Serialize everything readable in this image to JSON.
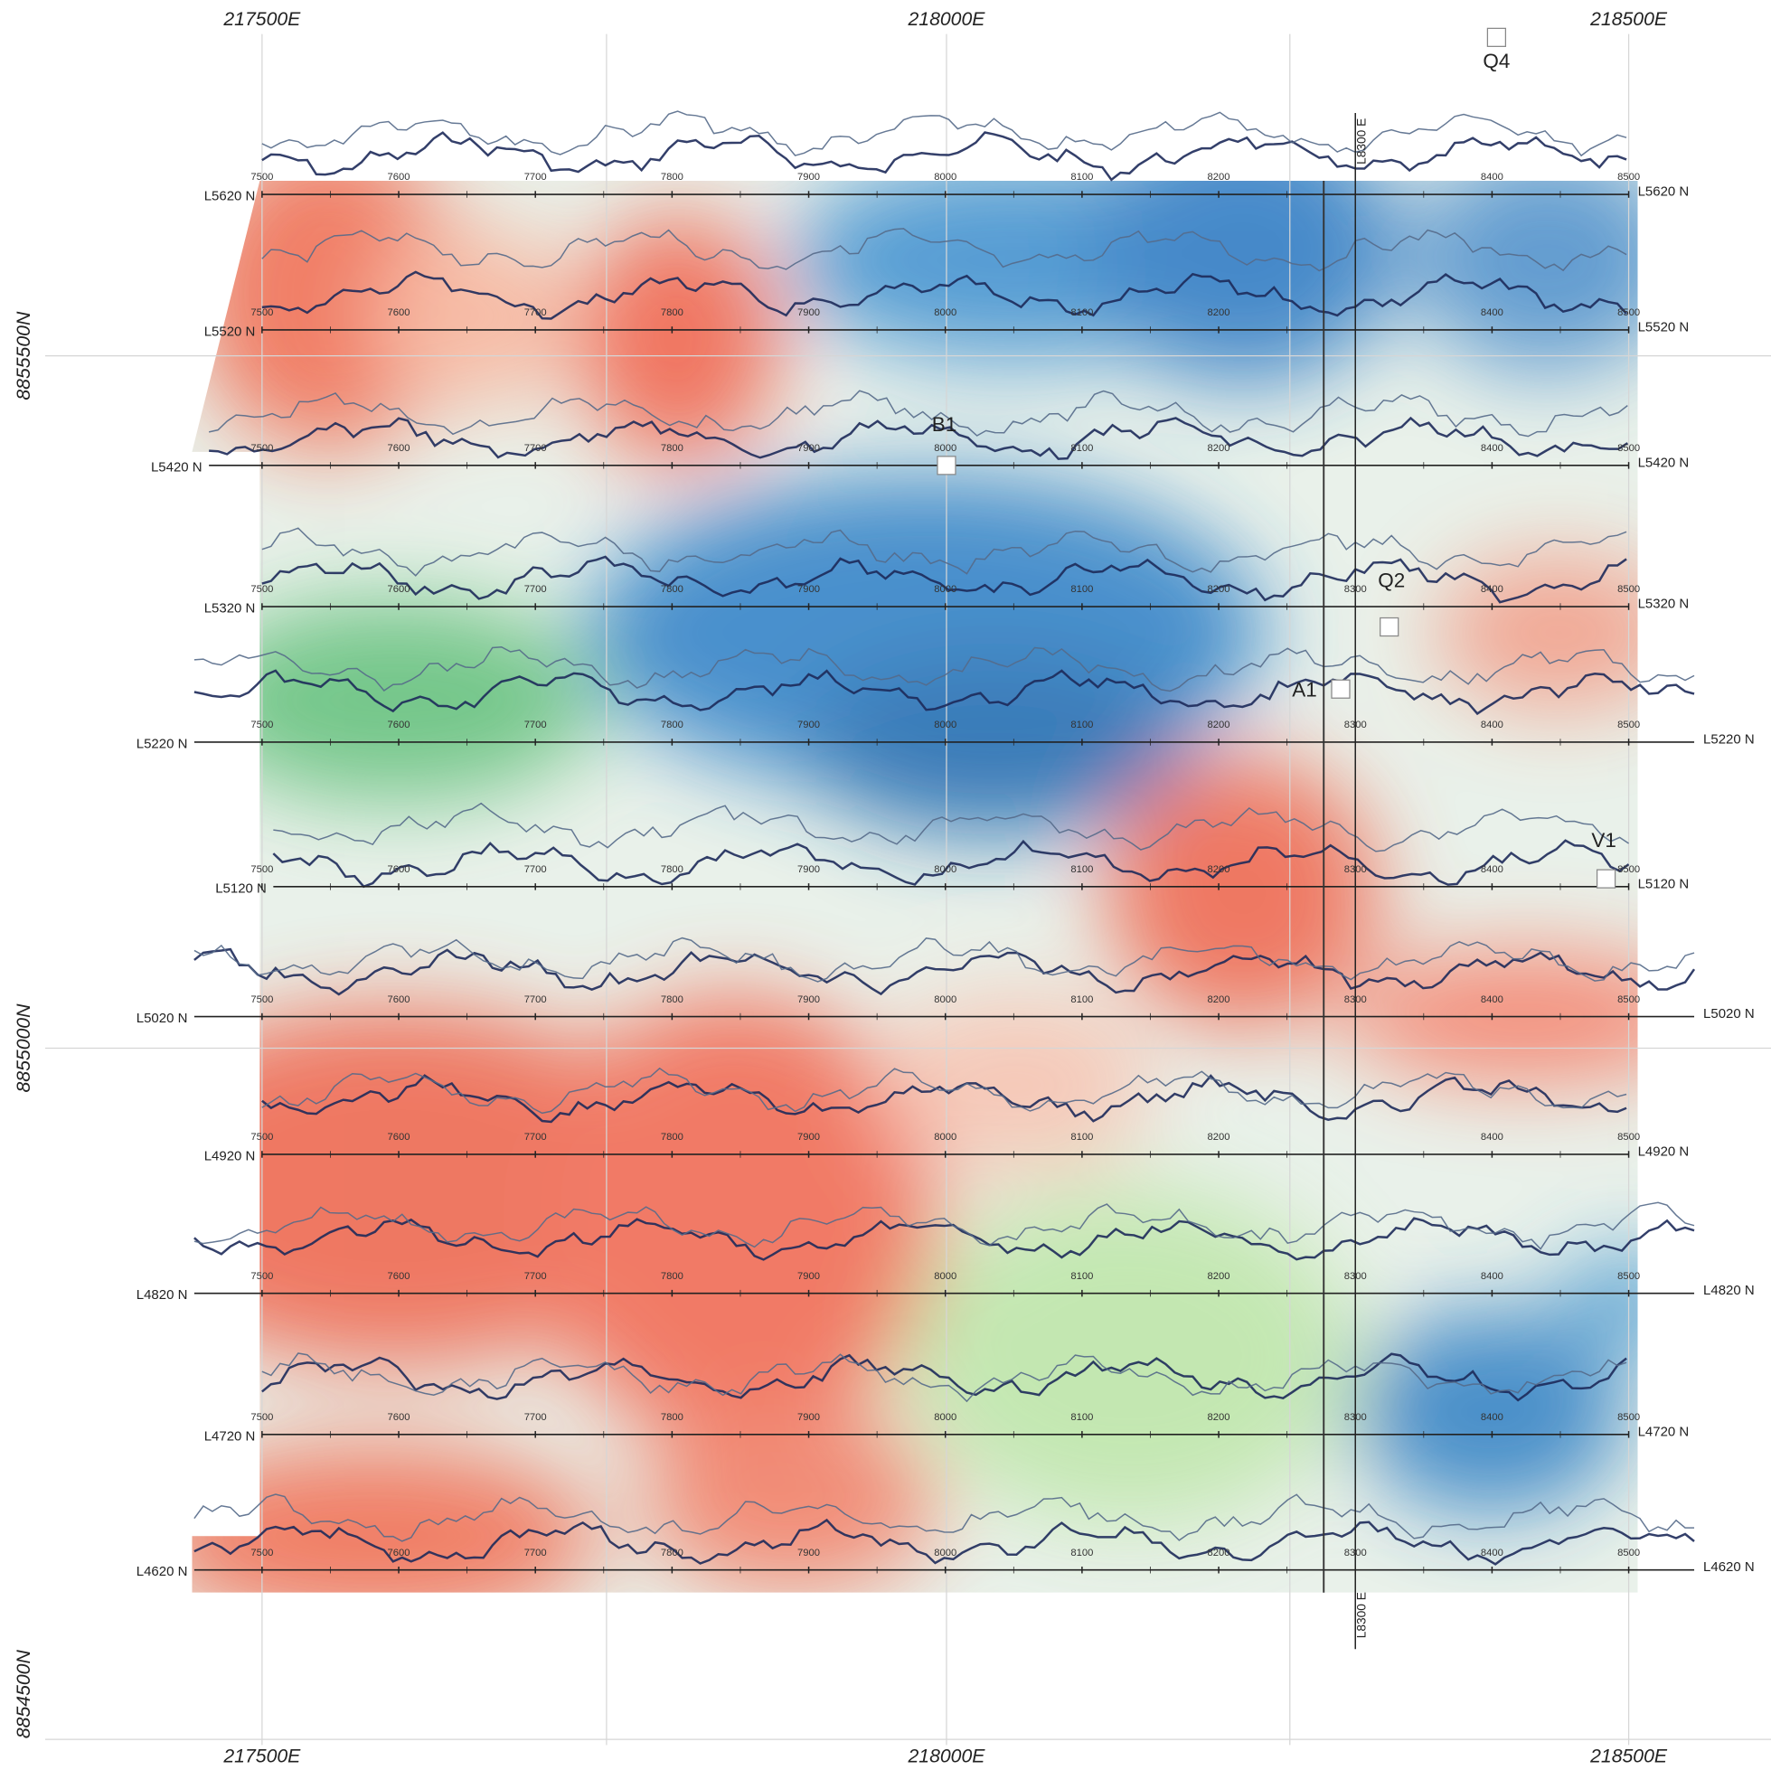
{
  "map": {
    "easting_labels_top": [
      "217500E",
      "218000E",
      "218500E"
    ],
    "easting_labels_bottom": [
      "217500E",
      "218000E",
      "218500E"
    ],
    "northing_labels": [
      "8855500N",
      "8855000N",
      "8854500N"
    ],
    "lines": [
      {
        "label": "L5620 N",
        "stations": [
          "7500",
          "7600",
          "7700",
          "7800",
          "7900",
          "8000",
          "8100",
          "8200",
          "8400",
          "8500"
        ]
      },
      {
        "label": "L5520 N",
        "stations": [
          "7500",
          "7600",
          "7700",
          "7800",
          "7900",
          "8000",
          "8100",
          "8200",
          "8400",
          "8500"
        ]
      },
      {
        "label": "L5420 N",
        "stations": [
          "7500",
          "7600",
          "7700",
          "7800",
          "7900",
          "8000",
          "8100",
          "8200",
          "8400",
          "8500"
        ]
      },
      {
        "label": "L5320 N",
        "stations": [
          "7500",
          "7600",
          "7700",
          "7800",
          "7900",
          "8000",
          "8100",
          "8200",
          "8300",
          "8400",
          "8500"
        ]
      },
      {
        "label": "L5220 N",
        "stations": [
          "7500",
          "7600",
          "7700",
          "7800",
          "7900",
          "8000",
          "8100",
          "8200",
          "8300",
          "8400",
          "8500"
        ]
      },
      {
        "label": "L5120 N",
        "stations": [
          "7500",
          "7600",
          "7700",
          "7800",
          "7900",
          "8000",
          "8100",
          "8200",
          "8300",
          "8400",
          "8500"
        ]
      },
      {
        "label": "L5020 N",
        "stations": [
          "7500",
          "7600",
          "7700",
          "7800",
          "7900",
          "8000",
          "8100",
          "8200",
          "8300",
          "8400",
          "8500"
        ]
      },
      {
        "label": "L4920 N",
        "stations": [
          "7500",
          "7600",
          "7700",
          "7800",
          "7900",
          "8000",
          "8100",
          "8200",
          "8400",
          "8500"
        ]
      },
      {
        "label": "L4820 N",
        "stations": [
          "7500",
          "7600",
          "7700",
          "7800",
          "7900",
          "8000",
          "8100",
          "8200",
          "8300",
          "8400",
          "8500"
        ]
      },
      {
        "label": "L4720 N",
        "stations": [
          "7500",
          "7600",
          "7700",
          "7800",
          "7900",
          "8000",
          "8100",
          "8200",
          "8300",
          "8400",
          "8500"
        ]
      },
      {
        "label": "L4620 N",
        "stations": [
          "7500",
          "7600",
          "7700",
          "7800",
          "7900",
          "8000",
          "8100",
          "8200",
          "8300",
          "8400",
          "8500"
        ]
      }
    ],
    "cross_line_labels": [
      "L8300 E",
      "L8300 E"
    ],
    "points": [
      {
        "label": "Q4"
      },
      {
        "label": "B1"
      },
      {
        "label": "Q2"
      },
      {
        "label": "A1"
      },
      {
        "label": "V1"
      }
    ]
  }
}
